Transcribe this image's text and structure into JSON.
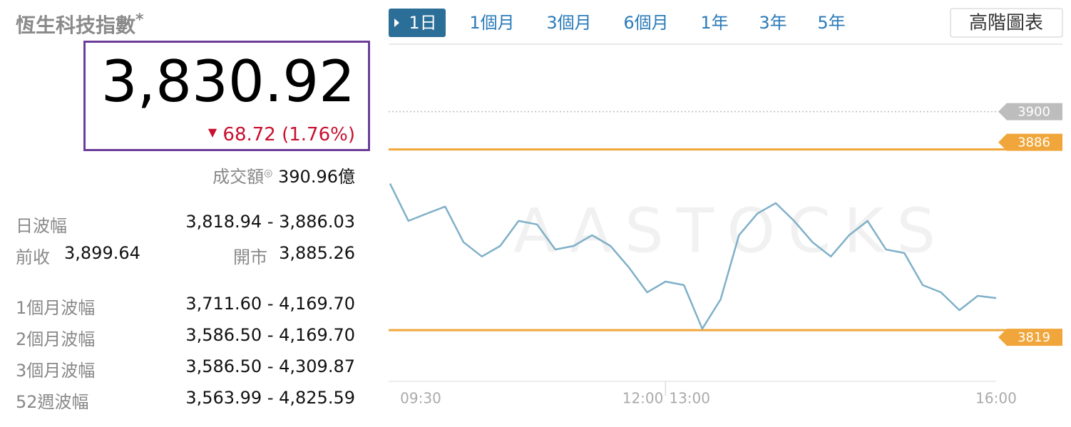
{
  "header": {
    "title": "恆生科技指數",
    "title_mark": "*",
    "price": "3,830.92",
    "change": "68.72 (1.76%)",
    "turnover_label": "成交額",
    "turnover": "390.96億"
  },
  "stats": {
    "day_range": [
      "日波幅",
      "3,818.94 - 3,886.03"
    ],
    "prev_open": [
      "前收",
      "3,899.64",
      "開市",
      "3,885.26"
    ],
    "ranges": [
      [
        "1個月波幅",
        "3,711.60 - 4,169.70"
      ],
      [
        "2個月波幅",
        "3,586.50 - 4,169.70"
      ],
      [
        "3個月波幅",
        "3,586.50 - 4,309.87"
      ],
      [
        "52週波幅",
        "3,563.99 - 4,825.59"
      ]
    ]
  },
  "tabs": {
    "items": [
      "1日",
      "1個月",
      "3個月",
      "6個月",
      "1年",
      "3年",
      "5年"
    ],
    "active": 0,
    "button": "高階圖表"
  },
  "chart_data": {
    "type": "line",
    "watermark": "AASTOCKS",
    "x": [
      "09:30",
      "09:40",
      "09:50",
      "10:00",
      "10:10",
      "10:20",
      "10:30",
      "10:40",
      "10:50",
      "11:00",
      "11:10",
      "11:20",
      "11:30",
      "11:40",
      "11:50",
      "12:00",
      "13:00",
      "13:10",
      "13:20",
      "13:30",
      "13:40",
      "13:50",
      "14:00",
      "14:10",
      "14:20",
      "14:30",
      "14:40",
      "14:50",
      "15:00",
      "15:10",
      "15:20",
      "15:30",
      "15:40",
      "15:50",
      "16:00"
    ],
    "series": [
      {
        "color": "#7fb0c8",
        "values": [
          3873.3,
          3859.5,
          3862.2,
          3864.8,
          3851.6,
          3846.3,
          3850.2,
          3859.5,
          3858.2,
          3848.9,
          3850.2,
          3854.2,
          3850.2,
          3842.3,
          3833.0,
          3837.0,
          3837.0,
          3835.7,
          3819.5,
          3830.4,
          3854.2,
          3862.2,
          3866.1,
          3859.5,
          3851.6,
          3846.3,
          3854.2,
          3859.5,
          3848.9,
          3847.6,
          3835.7,
          3833.0,
          3826.4,
          3831.7,
          3830.9
        ]
      }
    ],
    "ylim": [
      3800,
      3925
    ],
    "xticks": [
      "09:30",
      "12:00",
      "13:00",
      "16:00"
    ],
    "ref_lines": [
      {
        "value": 3900,
        "color": "#bdbdbd",
        "style": "dotted"
      },
      {
        "value": 3886,
        "color": "#f0a63a",
        "style": "solid"
      },
      {
        "value": 3819,
        "color": "#f0a63a",
        "style": "solid"
      }
    ]
  }
}
